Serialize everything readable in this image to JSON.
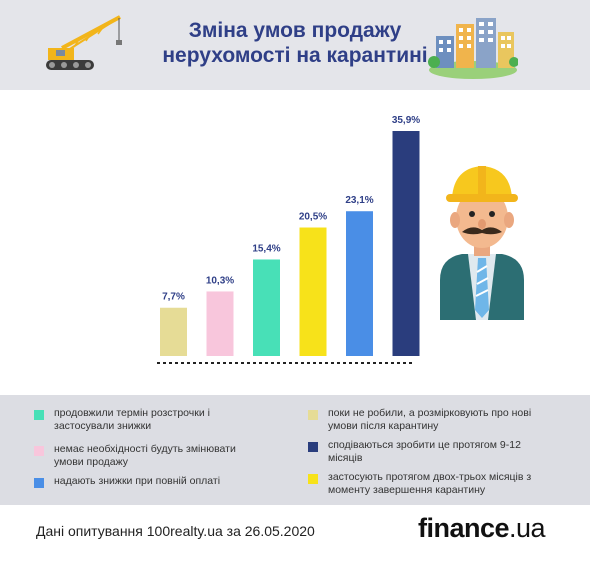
{
  "header": {
    "title_line1": "Зміна умов продажу",
    "title_line2": "нерухомості на карантині",
    "bg_color": "#e4e5ea",
    "title_color": "#2f3f87"
  },
  "chart_data": {
    "type": "bar",
    "title": "",
    "categories": [
      "поки не робили, а розмірковують про нові умови після карантину",
      "немає необхідності будуть змінювати умови продажу",
      "продовжили термін розстрочки і застосували знижки",
      "застосують протягом двох-трьох місяців з моменту завершення карантину",
      "надають знижки при повній оплаті",
      "сподіваються зробити це протягом 9-12 місяців"
    ],
    "values": [
      7.7,
      10.3,
      15.4,
      20.5,
      23.1,
      35.9
    ],
    "value_labels": [
      "7,7%",
      "10,3%",
      "15,4%",
      "20,5%",
      "23,1%",
      "35,9%"
    ],
    "colors": [
      "#e6dc96",
      "#f8c6dc",
      "#48e0b7",
      "#f7e21a",
      "#4a8ee6",
      "#2a3d7d"
    ],
    "ylim": [
      0,
      35.9
    ],
    "grid": false,
    "legend": "bottom"
  },
  "legend": {
    "items": [
      {
        "label": "продовжили термін розстрочки і застосували знижки",
        "color": "#48e0b7"
      },
      {
        "label": "немає необхідності будуть змінювати умови продажу",
        "color": "#f8c6dc"
      },
      {
        "label": "надають знижки при повній оплаті",
        "color": "#4a8ee6"
      },
      {
        "label": "поки не робили, а розмірковують про нові умови після карантину",
        "color": "#e6dc96"
      },
      {
        "label": "сподіваються зробити це протягом 9-12 місяців",
        "color": "#2a3d7d"
      },
      {
        "label": "застосують протягом двох-трьох місяців з моменту завершення карантину",
        "color": "#f7e21a"
      }
    ]
  },
  "footer": {
    "source": "Дані опитування 100realty.ua за 26.05.2020",
    "brand_main": "finance",
    "brand_suffix": ".ua"
  },
  "icons": {
    "left": "crane-icon",
    "right": "buildings-icon",
    "character": "builder-man-icon"
  }
}
